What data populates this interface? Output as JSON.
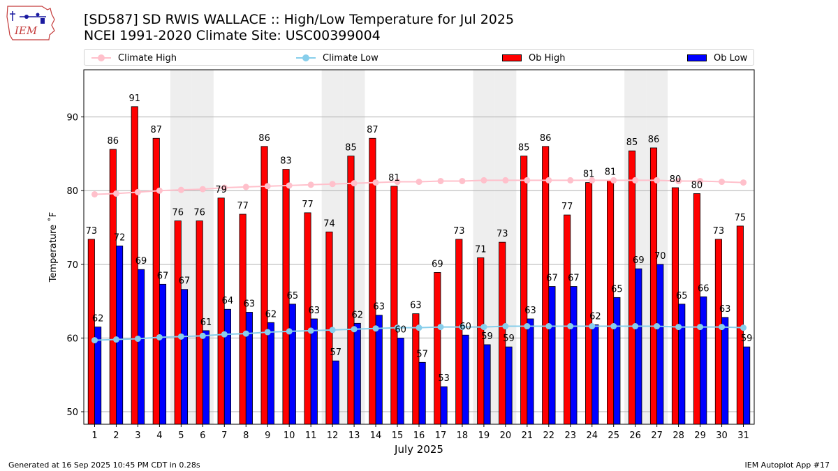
{
  "logo_text": "IEM",
  "chart_data": {
    "type": "bar",
    "title": "[SD587] SD RWIS WALLACE :: High/Low Temperature for Jul 2025",
    "subtitle": "NCEI 1991-2020 Climate Site: USC00399004",
    "xlabel": "July 2025",
    "ylabel": "Temperature ˚F",
    "ylim": [
      48.3,
      96.4
    ],
    "yticks": [
      50,
      60,
      70,
      80,
      90
    ],
    "grid": true,
    "legend_position": "top",
    "categories": [
      "1",
      "2",
      "3",
      "4",
      "5",
      "6",
      "7",
      "8",
      "9",
      "10",
      "11",
      "12",
      "13",
      "14",
      "15",
      "16",
      "17",
      "18",
      "19",
      "20",
      "21",
      "22",
      "23",
      "24",
      "25",
      "26",
      "27",
      "28",
      "29",
      "30",
      "31"
    ],
    "weekend_shading": [
      5,
      6,
      12,
      13,
      19,
      20,
      26,
      27
    ],
    "series": [
      {
        "name": "Ob High",
        "color": "#ff0000",
        "values": [
          73,
          86,
          91,
          87,
          76,
          76,
          79,
          77,
          86,
          83,
          77,
          74,
          85,
          87,
          81,
          63,
          69,
          73,
          71,
          73,
          85,
          86,
          77,
          81,
          81,
          85,
          86,
          80,
          80,
          73,
          75
        ],
        "heights": [
          73.4,
          85.6,
          91.4,
          87.1,
          75.9,
          75.9,
          79.0,
          76.8,
          86.0,
          82.9,
          77.0,
          74.4,
          84.7,
          87.1,
          80.6,
          63.3,
          68.9,
          73.4,
          70.9,
          73.0,
          84.7,
          86.0,
          76.7,
          81.1,
          81.4,
          85.4,
          85.8,
          80.4,
          79.6,
          73.4,
          75.2
        ]
      },
      {
        "name": "Ob Low",
        "color": "#0000ff",
        "values": [
          62,
          72,
          69,
          67,
          67,
          61,
          64,
          63,
          62,
          65,
          63,
          57,
          62,
          63,
          60,
          57,
          53,
          60,
          59,
          59,
          63,
          67,
          67,
          62,
          65,
          69,
          70,
          65,
          66,
          63,
          59
        ],
        "heights": [
          61.5,
          72.5,
          69.3,
          67.3,
          66.6,
          61.0,
          63.9,
          63.5,
          62.1,
          64.6,
          62.6,
          56.9,
          62.0,
          63.1,
          60.0,
          56.7,
          53.4,
          60.4,
          59.1,
          58.8,
          62.6,
          67.0,
          67.0,
          61.8,
          65.5,
          69.4,
          70.0,
          64.6,
          65.6,
          62.8,
          58.8
        ]
      },
      {
        "name": "Climate High",
        "color": "#ffc0cb",
        "values": [
          79.5,
          79.6,
          79.8,
          80.0,
          80.1,
          80.2,
          80.4,
          80.5,
          80.6,
          80.7,
          80.8,
          80.9,
          81.0,
          81.1,
          81.2,
          81.2,
          81.3,
          81.3,
          81.4,
          81.4,
          81.4,
          81.4,
          81.4,
          81.4,
          81.4,
          81.4,
          81.4,
          81.3,
          81.3,
          81.2,
          81.1
        ]
      },
      {
        "name": "Climate Low",
        "color": "#87ceeb",
        "values": [
          59.7,
          59.8,
          59.9,
          60.1,
          60.2,
          60.3,
          60.5,
          60.6,
          60.8,
          60.9,
          61.0,
          61.1,
          61.2,
          61.3,
          61.4,
          61.4,
          61.5,
          61.5,
          61.5,
          61.6,
          61.6,
          61.6,
          61.6,
          61.6,
          61.6,
          61.6,
          61.6,
          61.5,
          61.5,
          61.5,
          61.4
        ]
      }
    ]
  },
  "footer": {
    "left": "Generated at 16 Sep 2025 10:45 PM CDT in 0.28s",
    "right": "IEM Autoplot App #17"
  }
}
